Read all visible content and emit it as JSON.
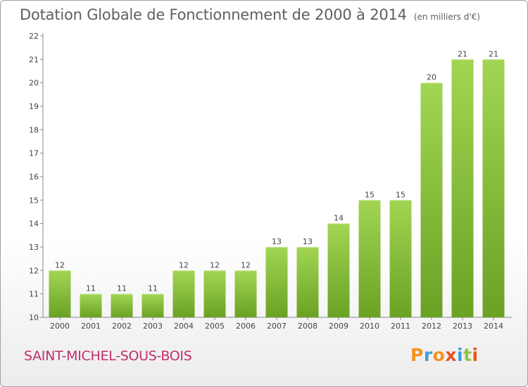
{
  "header": {
    "title": "Dotation Globale de Fonctionnement de 2000 à 2014",
    "subtitle": "(en milliers d'€)"
  },
  "footer": {
    "commune": "SAINT-MICHEL-SOUS-BOIS",
    "logo_text": "Proxiti"
  },
  "colors": {
    "bar_light": "#a2d553",
    "bar_dark": "#6aa224",
    "title": "#5f5f5f",
    "commune": "#c0306a"
  },
  "chart_data": {
    "type": "bar",
    "title": "Dotation Globale de Fonctionnement de 2000 à 2014",
    "subtitle": "(en milliers d'€)",
    "categories": [
      "2000",
      "2001",
      "2002",
      "2003",
      "2004",
      "2005",
      "2006",
      "2007",
      "2008",
      "2009",
      "2010",
      "2011",
      "2012",
      "2013",
      "2014"
    ],
    "values": [
      12,
      11,
      11,
      11,
      12,
      12,
      12,
      13,
      13,
      14,
      15,
      15,
      20,
      21,
      21
    ],
    "ylim": [
      10,
      22
    ],
    "yticks": [
      10,
      11,
      12,
      13,
      14,
      15,
      16,
      17,
      18,
      19,
      20,
      21,
      22
    ],
    "grid": false,
    "xlabel": "",
    "ylabel": ""
  }
}
